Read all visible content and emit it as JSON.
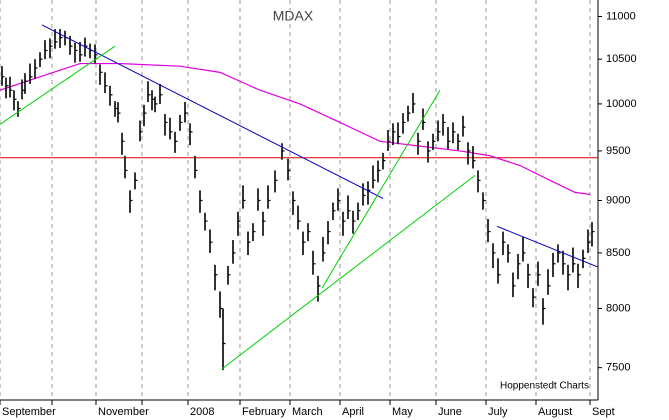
{
  "chart_data": {
    "type": "ohlc",
    "title": "MDAX",
    "annotations": [
      "Hoppenstedt Charts"
    ],
    "x": [
      1,
      3,
      5,
      7,
      9,
      11,
      12.5,
      15,
      17.5,
      20,
      22.5,
      25,
      27.5,
      30,
      32.5,
      35,
      37.5,
      40,
      42.5,
      45,
      47.5,
      50,
      52.5,
      55,
      57.5,
      59,
      61,
      62.5,
      65,
      67.5,
      70,
      72,
      74,
      76,
      77.5,
      80,
      82.5,
      85,
      87.5,
      90,
      92.5,
      95,
      97.5,
      100,
      102.5,
      105,
      107.5,
      110,
      111.5,
      114,
      116.5,
      119,
      121.5,
      124,
      126.5,
      129,
      131.5,
      134,
      137.5,
      141,
      144,
      146.5,
      149,
      151.5,
      154,
      156.5,
      159,
      161.5,
      164,
      166.5,
      169,
      171.5,
      174,
      176.5,
      179,
      181.5,
      184,
      186.5,
      189,
      191.5,
      194,
      196.5,
      199,
      201.5,
      204,
      206.5,
      209,
      211.5,
      214,
      216.5,
      219,
      221.5,
      224,
      226.5,
      229,
      231.5,
      234,
      236.5,
      239,
      241.5,
      244,
      246.5,
      249,
      251.5,
      254,
      256.5,
      259,
      261.5,
      264,
      266.5,
      269,
      271.5,
      274,
      276.5,
      279,
      281.5,
      284,
      286.5,
      289,
      291.5,
      294,
      296
    ],
    "high": [
      10420,
      10290,
      10300,
      10150,
      10030,
      10270,
      10340,
      10450,
      10500,
      10580,
      10720,
      10740,
      10850,
      10850,
      10830,
      10770,
      10690,
      10700,
      10750,
      10680,
      10670,
      10440,
      10350,
      10200,
      10030,
      10020,
      9690,
      9450,
      9100,
      9280,
      9820,
      9990,
      10250,
      10150,
      10080,
      10220,
      9890,
      9850,
      9700,
      9880,
      10020,
      9790,
      9450,
      9100,
      8880,
      8720,
      8390,
      8150,
      8000,
      8380,
      8620,
      8890,
      9150,
      8700,
      8780,
      9120,
      8890,
      9150,
      9300,
      9580,
      9420,
      9090,
      8950,
      8700,
      8780,
      8520,
      8290,
      8650,
      8800,
      8980,
      9120,
      8890,
      9050,
      8900,
      8980,
      9170,
      9190,
      9350,
      9400,
      9480,
      9720,
      9790,
      9800,
      9900,
      9980,
      10120,
      9690,
      9950,
      9600,
      9680,
      9820,
      9890,
      9750,
      9800,
      9680,
      9870,
      9590,
      9550,
      9300,
      9080,
      8820,
      8590,
      8450,
      8700,
      8580,
      8320,
      8490,
      8650,
      8400,
      8180,
      8420,
      8090,
      8350,
      8500,
      8580,
      8520,
      8390,
      8550,
      8400,
      8530,
      8720,
      8790
    ],
    "low": [
      10200,
      10060,
      10070,
      9930,
      9860,
      10050,
      10110,
      10220,
      10280,
      10410,
      10500,
      10510,
      10620,
      10630,
      10660,
      10550,
      10460,
      10470,
      10530,
      10510,
      10450,
      10210,
      10120,
      9980,
      9860,
      9800,
      9460,
      9220,
      8880,
      9110,
      9600,
      9760,
      10020,
      9930,
      9910,
      10000,
      9660,
      9620,
      9480,
      9710,
      9800,
      9560,
      9220,
      8880,
      8710,
      8500,
      8160,
      7920,
      7480,
      8210,
      8400,
      8660,
      8920,
      8480,
      8610,
      8900,
      8660,
      8920,
      9080,
      9410,
      9200,
      8860,
      8720,
      8480,
      8610,
      8300,
      8060,
      8420,
      8580,
      8810,
      8900,
      8660,
      8820,
      8680,
      8810,
      8950,
      8960,
      9120,
      9180,
      9310,
      9500,
      9560,
      9570,
      9680,
      9810,
      9900,
      9460,
      9720,
      9380,
      9510,
      9600,
      9660,
      9520,
      9580,
      9510,
      9650,
      9360,
      9320,
      9080,
      8910,
      8600,
      8360,
      8220,
      8480,
      8410,
      8100,
      8260,
      8420,
      8180,
      8010,
      8200,
      7860,
      8120,
      8280,
      8410,
      8300,
      8160,
      8320,
      8180,
      8360,
      8500,
      8560
    ],
    "close": [
      10300,
      10200,
      10150,
      10050,
      9950,
      10150,
      10250,
      10300,
      10400,
      10500,
      10600,
      10650,
      10700,
      10750,
      10750,
      10650,
      10600,
      10550,
      10650,
      10600,
      10550,
      10350,
      10200,
      10100,
      9950,
      9900,
      9600,
      9300,
      9000,
      9200,
      9700,
      9900,
      10100,
      10050,
      10000,
      10100,
      9800,
      9700,
      9600,
      9800,
      9900,
      9700,
      9300,
      9000,
      8800,
      8600,
      8300,
      8000,
      7700,
      8300,
      8500,
      8800,
      9000,
      8600,
      8700,
      9000,
      8800,
      9000,
      9200,
      9500,
      9300,
      9000,
      8800,
      8600,
      8700,
      8400,
      8200,
      8500,
      8700,
      8900,
      9000,
      8800,
      8900,
      8800,
      8900,
      9050,
      9100,
      9200,
      9300,
      9400,
      9600,
      9700,
      9650,
      9800,
      9900,
      10000,
      9600,
      9800,
      9500,
      9600,
      9700,
      9800,
      9600,
      9700,
      9600,
      9750,
      9500,
      9400,
      9200,
      9000,
      8700,
      8500,
      8300,
      8600,
      8500,
      8200,
      8400,
      8500,
      8300,
      8100,
      8300,
      8000,
      8200,
      8400,
      8500,
      8400,
      8300,
      8400,
      8300,
      8450,
      8600,
      8700
    ],
    "color": "#000000",
    "overlays": [
      {
        "color": "#e000e0",
        "x": [
          0,
          20,
          40,
          60,
          90,
          110,
          130,
          150,
          170,
          190,
          210,
          230,
          245,
          260,
          275,
          287.5,
          295
        ],
        "values": [
          10150,
          10300,
          10450,
          10450,
          10420,
          10350,
          10150,
          10000,
          9800,
          9600,
          9550,
          9500,
          9450,
          9350,
          9200,
          9080,
          9060
        ]
      }
    ],
    "hlines": [
      {
        "value": 9430,
        "color": "#e00000"
      }
    ],
    "trendlines": [
      {
        "x": [
          21,
          191.5
        ],
        "values": [
          10900,
          9020
        ],
        "color": "#0000c0"
      },
      {
        "x": [
          248.5,
          299
        ],
        "values": [
          8750,
          8370
        ],
        "color": "#0000c0"
      },
      {
        "x": [
          0,
          57.5
        ],
        "values": [
          9780,
          10650
        ],
        "color": "#00d000"
      },
      {
        "x": [
          111,
          237.5
        ],
        "values": [
          7490,
          9250
        ],
        "color": "#00d000"
      },
      {
        "x": [
          161,
          220
        ],
        "values": [
          8180,
          10150
        ],
        "color": "#00d000"
      }
    ],
    "xlim": [
      0,
      299
    ],
    "xticks": [
      {
        "value": 0,
        "label": "September"
      },
      {
        "value": 26,
        "label": null
      },
      {
        "value": 48,
        "label": "November"
      },
      {
        "value": 71,
        "label": null
      },
      {
        "value": 94,
        "label": "2008"
      },
      {
        "value": 120,
        "label": "February"
      },
      {
        "value": 145,
        "label": "March"
      },
      {
        "value": 170,
        "label": "April"
      },
      {
        "value": 195,
        "label": "May"
      },
      {
        "value": 218,
        "label": "June"
      },
      {
        "value": 243,
        "label": "July"
      },
      {
        "value": 268,
        "label": "August"
      },
      {
        "value": 295,
        "label": "Sept"
      }
    ],
    "ylim": [
      7240,
      11200
    ],
    "yticks": [
      7500,
      8000,
      8500,
      9000,
      9500,
      10000,
      10500,
      11000
    ],
    "log_scale": true,
    "grid": true
  }
}
